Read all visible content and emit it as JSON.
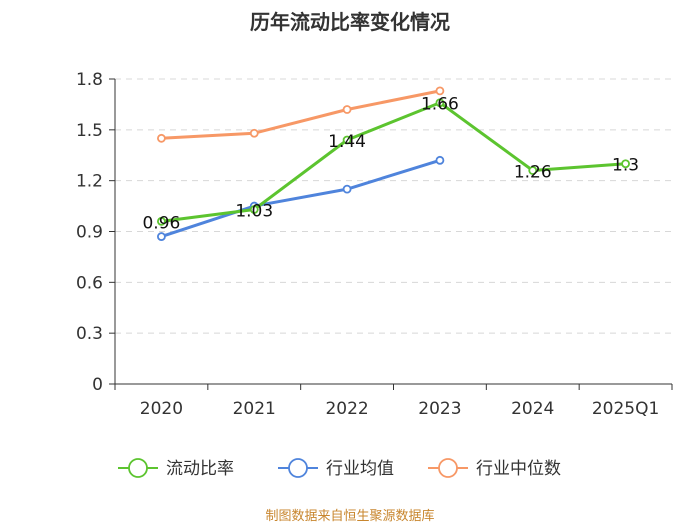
{
  "chart_data": {
    "type": "line",
    "title": "历年流动比率变化情况",
    "categories": [
      "2020",
      "2021",
      "2022",
      "2023",
      "2024",
      "2025Q1"
    ],
    "ylim": [
      0,
      1.8
    ],
    "yticks": [
      "0",
      "0.3",
      "0.6",
      "0.9",
      "1.2",
      "1.5",
      "1.8"
    ],
    "grid": true,
    "legend_position": "bottom",
    "series": [
      {
        "name": "流动比率",
        "color": "#5cc42f",
        "values": [
          0.96,
          1.03,
          1.44,
          1.66,
          1.26,
          1.3
        ],
        "labels": [
          "0.96",
          "1.03",
          "1.44",
          "1.66",
          "1.26",
          "1.3"
        ]
      },
      {
        "name": "行业均值",
        "color": "#4f84dc",
        "values": [
          0.87,
          1.05,
          1.15,
          1.32,
          null,
          null
        ]
      },
      {
        "name": "行业中位数",
        "color": "#f79866",
        "values": [
          1.45,
          1.48,
          1.62,
          1.73,
          null,
          null
        ]
      }
    ],
    "source": "制图数据来自恒生聚源数据库"
  }
}
